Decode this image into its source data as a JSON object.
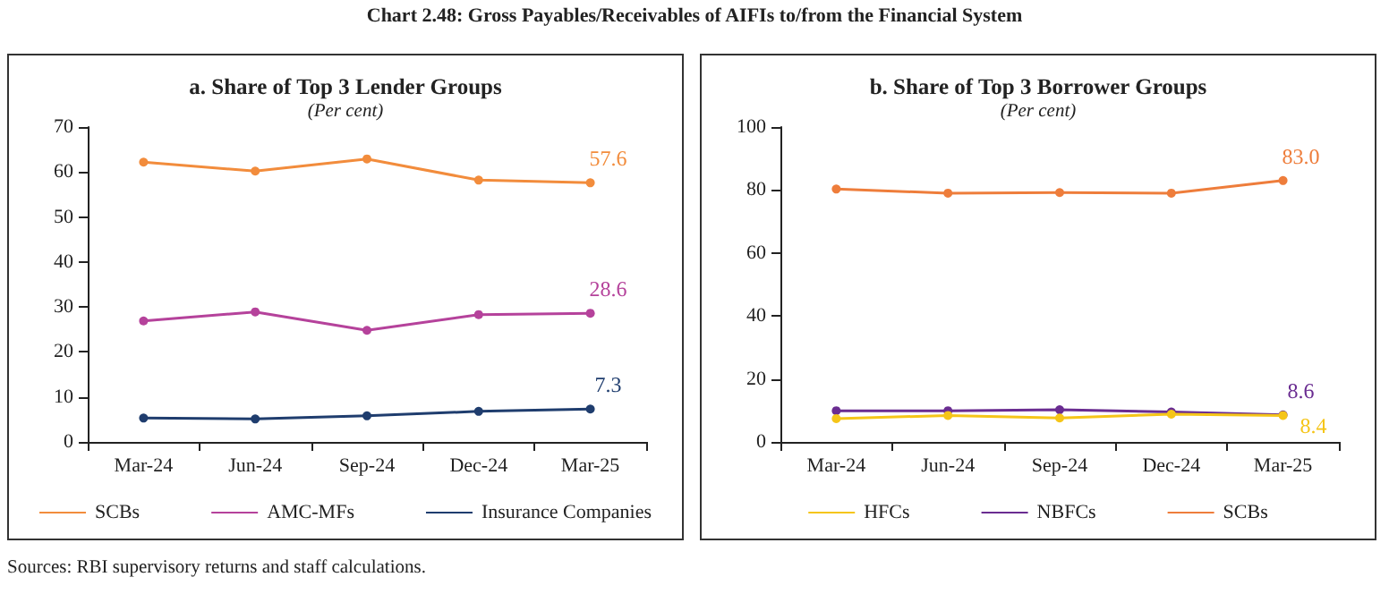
{
  "chart_data": [
    {
      "type": "line",
      "title": "a. Share of Top 3 Lender Groups",
      "subtitle": "(Per cent)",
      "annotations": [
        "Chart 2.48: Gross Payables/Receivables of AIFIs to/from the Financial System"
      ],
      "categories": [
        "Mar-24",
        "Jun-24",
        "Sep-24",
        "Dec-24",
        "Mar-25"
      ],
      "series": [
        {
          "name": "SCBs",
          "color": "#f28c3c",
          "values": [
            62.2,
            60.2,
            62.9,
            58.2,
            57.6
          ],
          "value_labels": [
            null,
            null,
            null,
            null,
            "57.6"
          ]
        },
        {
          "name": "AMC-MFs",
          "color": "#b5429b",
          "values": [
            26.9,
            28.9,
            24.8,
            28.3,
            28.6
          ],
          "value_labels": [
            null,
            null,
            null,
            null,
            "28.6"
          ]
        },
        {
          "name": "Insurance Companies",
          "color": "#1f3d6e",
          "values": [
            5.3,
            5.1,
            5.8,
            6.8,
            7.3
          ],
          "value_labels": [
            null,
            null,
            null,
            null,
            "7.3"
          ]
        }
      ],
      "ylim": [
        0,
        70
      ],
      "yticks": [
        0,
        10,
        20,
        30,
        40,
        50,
        60,
        70
      ],
      "grid": false,
      "legend": "bottom",
      "marker": "circle",
      "line_style": "solid"
    },
    {
      "type": "line",
      "title": "b. Share of Top 3 Borrower Groups",
      "subtitle": "(Per cent)",
      "annotations": [
        "Sources: RBI supervisory returns and staff calculations."
      ],
      "categories": [
        "Mar-24",
        "Jun-24",
        "Sep-24",
        "Dec-24",
        "Mar-25"
      ],
      "series": [
        {
          "name": "HFCs",
          "color": "#f5c518",
          "values": [
            7.4,
            8.4,
            7.6,
            8.8,
            8.4
          ],
          "value_labels": [
            null,
            null,
            null,
            null,
            "8.4"
          ]
        },
        {
          "name": "NBFCs",
          "color": "#6a2c91",
          "values": [
            9.9,
            9.9,
            10.2,
            9.5,
            8.6
          ],
          "value_labels": [
            null,
            null,
            null,
            null,
            "8.6"
          ]
        },
        {
          "name": "SCBs",
          "color": "#ee7d3b",
          "values": [
            80.3,
            79.0,
            79.2,
            79.0,
            83.0
          ],
          "value_labels": [
            null,
            null,
            null,
            null,
            "83.0"
          ]
        }
      ],
      "ylim": [
        0,
        100
      ],
      "yticks": [
        0,
        20,
        40,
        60,
        80,
        100
      ],
      "grid": false,
      "legend": "bottom",
      "marker": "circle",
      "line_style": "solid"
    }
  ]
}
